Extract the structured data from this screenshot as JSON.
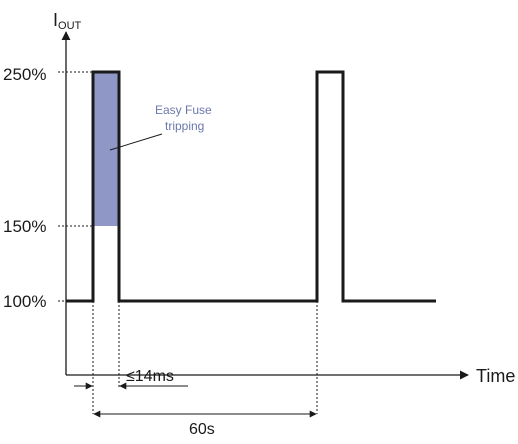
{
  "y_axis": {
    "label_main": "I",
    "label_sub": "OUT",
    "ticks": [
      {
        "label": "250%",
        "value": 250
      },
      {
        "label": "150%",
        "value": 150
      },
      {
        "label": "100%",
        "value": 100
      }
    ]
  },
  "x_axis": {
    "label": "Time"
  },
  "annotation": {
    "line1": "Easy Fuse",
    "line2": "tripping"
  },
  "dimensions": {
    "pulse_width": "≤14ms",
    "period": "60s"
  },
  "colors": {
    "signal": "#1a1a1a",
    "highlight": "#8e97c6",
    "annotation_text": "#6c79ae"
  }
}
